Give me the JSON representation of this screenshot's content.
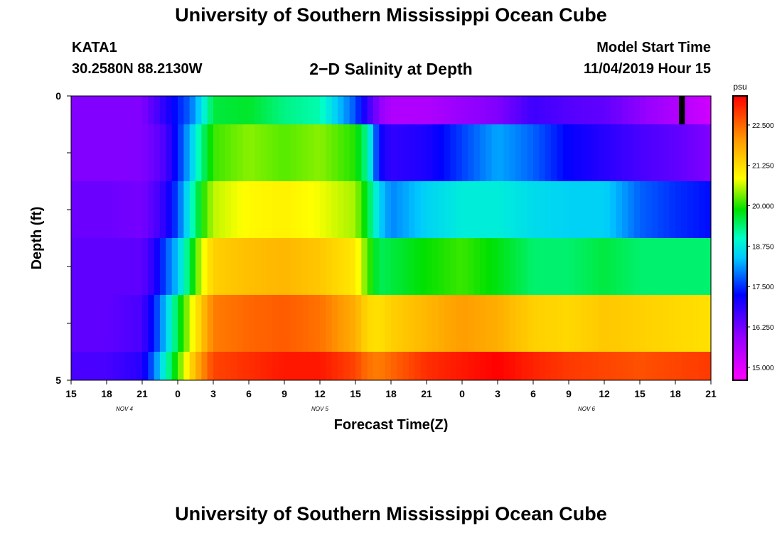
{
  "header": {
    "title": "University of Southern Mississippi Ocean Cube",
    "station_id": "KATA1",
    "coordinates": "30.2580N 88.2130W",
    "subtitle": "2−D Salinity at Depth",
    "model_start_label": "Model Start Time",
    "model_start_value": "11/04/2019 Hour 15"
  },
  "footer": {
    "title": "University of Southern Mississippi Ocean Cube"
  },
  "chart_data": {
    "type": "heatmap",
    "xlabel": "Forecast Time(Z)",
    "ylabel": "Depth (ft)",
    "x_start_hour": 15,
    "x_end_hour": 69,
    "x_tick_hours": [
      15,
      18,
      21,
      24,
      27,
      30,
      33,
      36,
      39,
      42,
      45,
      48,
      51,
      54,
      57,
      60,
      63,
      66,
      69
    ],
    "x_tick_labels": [
      "15",
      "18",
      "21",
      "0",
      "3",
      "6",
      "9",
      "12",
      "15",
      "18",
      "21",
      "0",
      "3",
      "6",
      "9",
      "12",
      "15",
      "18",
      "21"
    ],
    "date_labels": [
      {
        "text": "NOV  4",
        "hour": 19.5
      },
      {
        "text": "NOV  5",
        "hour": 36
      },
      {
        "text": "NOV  6",
        "hour": 58.5
      }
    ],
    "ylim": [
      0,
      5
    ],
    "y_tick_labels": [
      {
        "value": 0,
        "label": "0"
      },
      {
        "value": 1,
        "label": ""
      },
      {
        "value": 2,
        "label": ""
      },
      {
        "value": 3,
        "label": ""
      },
      {
        "value": 4,
        "label": ""
      },
      {
        "value": 5,
        "label": "5"
      }
    ],
    "depth_bands": [
      {
        "top": 0.0,
        "bottom": 0.5
      },
      {
        "top": 0.5,
        "bottom": 1.5
      },
      {
        "top": 1.5,
        "bottom": 2.5
      },
      {
        "top": 2.5,
        "bottom": 3.5
      },
      {
        "top": 3.5,
        "bottom": 4.5
      },
      {
        "top": 4.5,
        "bottom": 5.0
      }
    ],
    "time_hours": [
      15,
      18,
      21,
      22,
      23,
      24,
      25,
      26,
      27,
      30,
      33,
      36,
      39,
      40,
      41,
      42,
      45,
      48,
      51,
      54,
      57,
      60,
      63,
      66,
      69
    ],
    "salinity": [
      [
        16.1,
        16.1,
        16.1,
        16.5,
        16.9,
        17.4,
        17.8,
        18.6,
        19.6,
        19.7,
        19.3,
        19.1,
        17.7,
        16.8,
        16.0,
        15.6,
        15.6,
        15.9,
        16.1,
        16.7,
        16.5,
        16.4,
        16.0,
        15.6,
        15.2
      ],
      [
        16.1,
        16.1,
        16.1,
        16.3,
        16.6,
        17.4,
        18.3,
        19.3,
        20.1,
        20.4,
        20.2,
        20.4,
        20.0,
        19.2,
        17.2,
        16.8,
        17.0,
        17.6,
        18.2,
        17.8,
        17.2,
        16.9,
        16.6,
        16.4,
        16.1
      ],
      [
        16.3,
        16.3,
        16.2,
        16.5,
        16.9,
        17.7,
        18.8,
        19.9,
        20.6,
        20.9,
        21.0,
        20.8,
        20.5,
        19.7,
        18.5,
        18.0,
        18.5,
        18.8,
        18.8,
        18.6,
        18.5,
        18.5,
        17.8,
        17.5,
        17.3
      ],
      [
        16.4,
        16.4,
        16.4,
        16.9,
        17.7,
        18.4,
        19.5,
        20.7,
        21.4,
        21.6,
        21.7,
        21.5,
        21.1,
        20.2,
        19.5,
        19.6,
        19.9,
        20.1,
        19.8,
        19.4,
        19.4,
        19.6,
        19.4,
        19.4,
        19.4
      ],
      [
        16.4,
        16.4,
        16.6,
        17.4,
        18.4,
        19.6,
        20.6,
        21.5,
        22.3,
        22.5,
        22.6,
        22.4,
        21.8,
        21.3,
        21.2,
        21.4,
        21.7,
        22.0,
        21.8,
        21.4,
        21.3,
        21.5,
        21.4,
        21.3,
        21.2
      ],
      [
        16.6,
        16.6,
        16.9,
        17.9,
        19.0,
        20.1,
        21.2,
        22.1,
        22.8,
        23.0,
        23.2,
        23.2,
        22.8,
        22.4,
        22.3,
        22.5,
        23.0,
        23.2,
        23.4,
        23.1,
        22.9,
        22.8,
        22.7,
        22.8,
        22.9
      ]
    ],
    "colorbar": {
      "unit": "psu",
      "min": 14.6,
      "max": 23.4,
      "ticks": [
        15.0,
        16.25,
        17.5,
        18.75,
        20.0,
        21.25,
        22.5
      ],
      "tick_labels": [
        "15.000",
        "16.250",
        "17.500",
        "18.750",
        "20.000",
        "21.250",
        "22.500"
      ]
    },
    "missing_data": {
      "top": 0,
      "bottom": 0.5,
      "x_start_hour": 66.3,
      "x_end_hour": 66.8
    },
    "colors": {
      "missing": "#000000"
    }
  }
}
